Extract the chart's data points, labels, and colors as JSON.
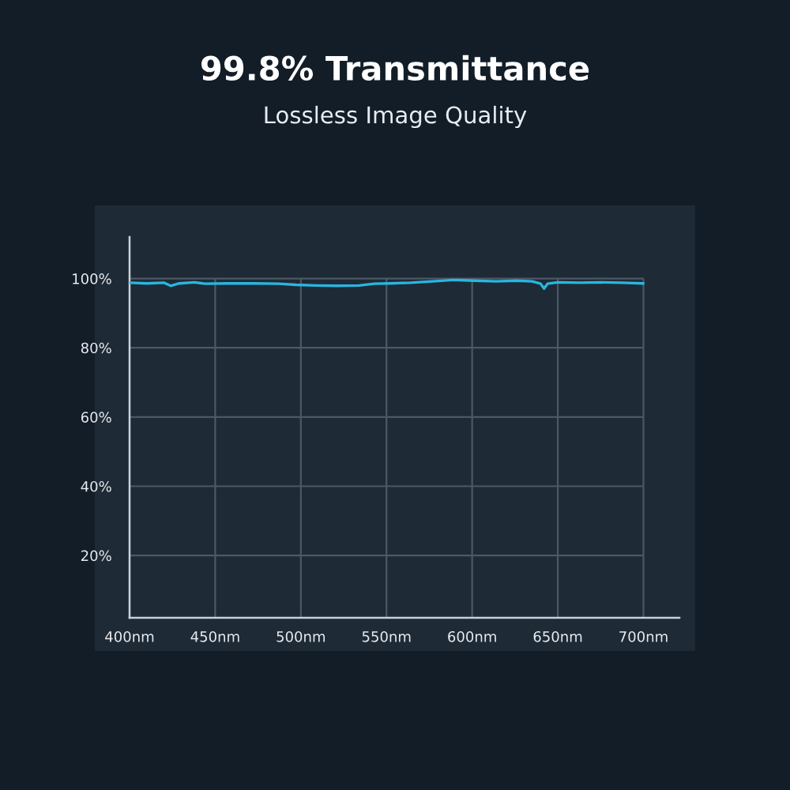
{
  "chart_data": {
    "type": "line",
    "title": "99.8% Transmittance",
    "subtitle": "Lossless Image Quality",
    "x": [
      400,
      410,
      420,
      424,
      429,
      438,
      444,
      457,
      472,
      487,
      497,
      509,
      521,
      534,
      543,
      552,
      564,
      577,
      589,
      595,
      601,
      614,
      626,
      635,
      640,
      642,
      644,
      650,
      663,
      675,
      687,
      700
    ],
    "series": [
      {
        "color": "#29b6df",
        "values": [
          98.8,
          98.6,
          98.8,
          97.9,
          98.6,
          98.9,
          98.5,
          98.6,
          98.6,
          98.5,
          98.2,
          98.0,
          97.9,
          98.0,
          98.5,
          98.6,
          98.8,
          99.2,
          99.6,
          99.5,
          99.4,
          99.2,
          99.4,
          99.2,
          98.5,
          97.1,
          98.5,
          98.9,
          98.8,
          98.9,
          98.8,
          98.6
        ]
      }
    ],
    "xlim": [
      400,
      721
    ],
    "xticks": [
      {
        "value": 400,
        "label": "400nm"
      },
      {
        "value": 450,
        "label": "450nm"
      },
      {
        "value": 500,
        "label": "500nm"
      },
      {
        "value": 550,
        "label": "550nm"
      },
      {
        "value": 600,
        "label": "600nm"
      },
      {
        "value": 650,
        "label": "650nm"
      },
      {
        "value": 700,
        "label": "700nm"
      }
    ],
    "ylim": [
      2,
      112
    ],
    "yticks": [
      {
        "value": 20,
        "label": "20%"
      },
      {
        "value": 40,
        "label": "40%"
      },
      {
        "value": 60,
        "label": "60%"
      },
      {
        "value": 80,
        "label": "80%"
      },
      {
        "value": 100,
        "label": "100%"
      }
    ],
    "grid": true,
    "line_style": "solid"
  }
}
